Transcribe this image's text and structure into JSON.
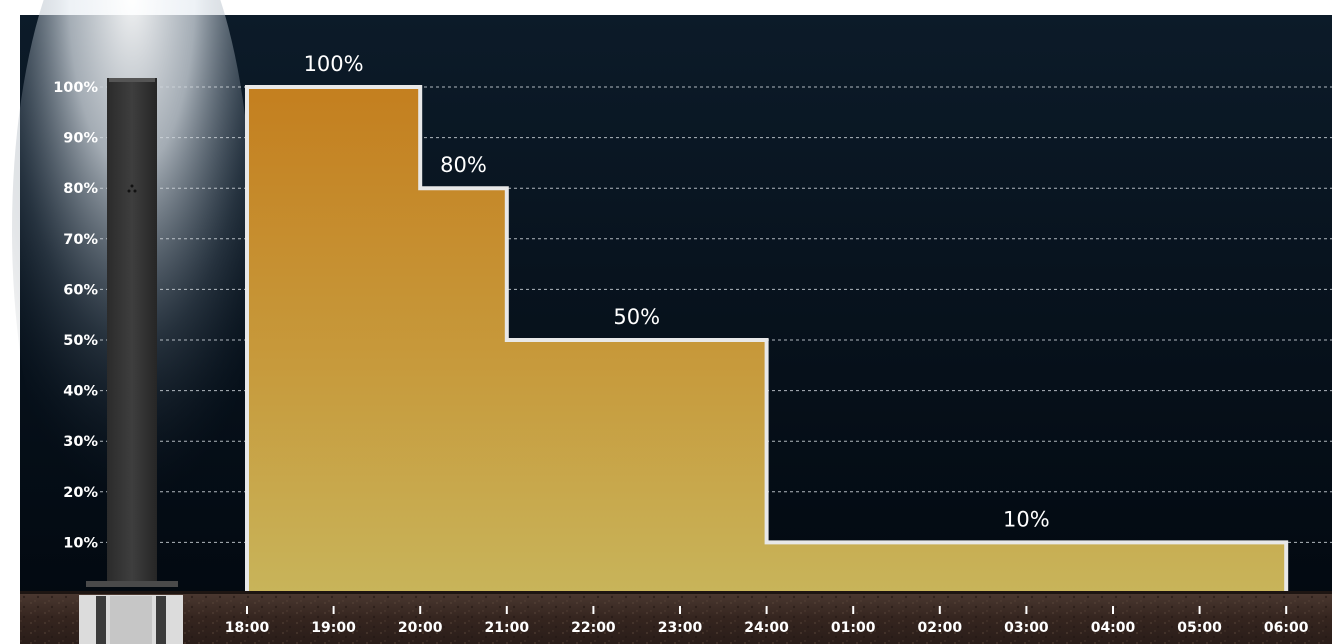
{
  "chart_data": {
    "type": "area",
    "step": true,
    "categories": [
      "18:00",
      "19:00",
      "20:00",
      "21:00",
      "22:00",
      "23:00",
      "24:00",
      "01:00",
      "02:00",
      "03:00",
      "04:00",
      "05:00",
      "06:00"
    ],
    "series": [
      {
        "values": [
          100,
          100,
          80,
          50,
          50,
          50,
          10,
          10,
          10,
          10,
          10,
          10,
          10
        ]
      }
    ],
    "steps": [
      {
        "from": "18:00",
        "to": "20:00",
        "value": 100,
        "label": "100%"
      },
      {
        "from": "20:00",
        "to": "21:00",
        "value": 80,
        "label": "80%"
      },
      {
        "from": "21:00",
        "to": "24:00",
        "value": 50,
        "label": "50%"
      },
      {
        "from": "24:00",
        "to": "06:00",
        "value": 10,
        "label": "10%"
      }
    ],
    "yticks": [
      "10%",
      "20%",
      "30%",
      "40%",
      "50%",
      "60%",
      "70%",
      "80%",
      "90%",
      "100%"
    ],
    "ylim": [
      0,
      100
    ],
    "grid": true,
    "legend": "none",
    "colors": {
      "fill_top": "#c47f1f",
      "fill_bottom": "#c8b45a",
      "outline": "#e8e8e8",
      "sky_top": "#0c1b29",
      "ground": "#3a2a24"
    }
  }
}
